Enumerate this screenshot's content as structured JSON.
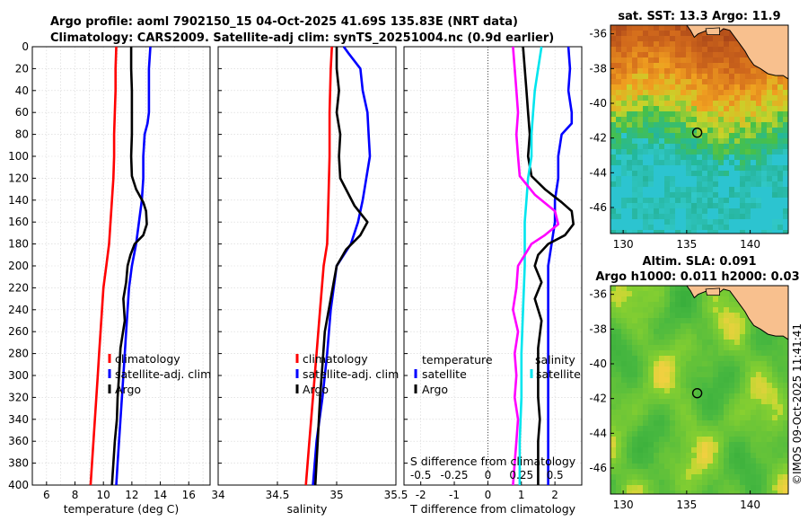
{
  "header": {
    "line1": "Argo profile: aoml 7902150_15 04-Oct-2025 41.69S 135.83E (NRT data)",
    "line2": "Climatology: CARS2009. Satellite-adj clim: synTS_20251004.nc (0.9d earlier)"
  },
  "watermark": "©IMOS 09-Oct-2025 11:41:41",
  "chart_data": [
    {
      "id": "temperature",
      "type": "line",
      "xlabel": "temperature (deg C)",
      "ylabel": "",
      "xlim": [
        5,
        17.5
      ],
      "ylim": [
        400,
        0
      ],
      "xticks": [
        6,
        8,
        10,
        12,
        14,
        16
      ],
      "yticks": [
        0,
        20,
        40,
        60,
        80,
        100,
        120,
        140,
        160,
        180,
        200,
        220,
        240,
        260,
        280,
        300,
        320,
        340,
        360,
        380,
        400
      ],
      "legend": [
        "climatology",
        "satellite-adj. clim",
        "Argo"
      ],
      "series": [
        {
          "name": "climatology",
          "color": "#ff0000",
          "points": [
            [
              10.9,
              0
            ],
            [
              10.85,
              20
            ],
            [
              10.85,
              40
            ],
            [
              10.8,
              60
            ],
            [
              10.75,
              80
            ],
            [
              10.75,
              100
            ],
            [
              10.7,
              120
            ],
            [
              10.6,
              140
            ],
            [
              10.5,
              160
            ],
            [
              10.4,
              180
            ],
            [
              10.2,
              200
            ],
            [
              10.0,
              220
            ],
            [
              9.9,
              240
            ],
            [
              9.8,
              260
            ],
            [
              9.7,
              280
            ],
            [
              9.6,
              300
            ],
            [
              9.5,
              320
            ],
            [
              9.4,
              340
            ],
            [
              9.3,
              360
            ],
            [
              9.2,
              380
            ],
            [
              9.1,
              400
            ]
          ]
        },
        {
          "name": "satellite-adj. clim",
          "color": "#0000ff",
          "points": [
            [
              13.3,
              0
            ],
            [
              13.2,
              20
            ],
            [
              13.2,
              40
            ],
            [
              13.2,
              60
            ],
            [
              13.1,
              70
            ],
            [
              12.9,
              80
            ],
            [
              12.8,
              100
            ],
            [
              12.8,
              120
            ],
            [
              12.7,
              140
            ],
            [
              12.5,
              160
            ],
            [
              12.3,
              180
            ],
            [
              12.0,
              200
            ],
            [
              11.8,
              220
            ],
            [
              11.7,
              240
            ],
            [
              11.6,
              260
            ],
            [
              11.5,
              280
            ],
            [
              11.4,
              300
            ],
            [
              11.3,
              320
            ],
            [
              11.2,
              340
            ],
            [
              11.1,
              360
            ],
            [
              11.0,
              380
            ],
            [
              10.9,
              400
            ]
          ]
        },
        {
          "name": "Argo",
          "color": "#000000",
          "points": [
            [
              11.95,
              0
            ],
            [
              11.95,
              20
            ],
            [
              12.0,
              40
            ],
            [
              12.0,
              60
            ],
            [
              12.0,
              80
            ],
            [
              11.95,
              100
            ],
            [
              12.0,
              118
            ],
            [
              12.3,
              130
            ],
            [
              12.8,
              142
            ],
            [
              13.0,
              150
            ],
            [
              13.05,
              162
            ],
            [
              12.8,
              172
            ],
            [
              12.2,
              180
            ],
            [
              11.9,
              190
            ],
            [
              11.7,
              200
            ],
            [
              11.6,
              215
            ],
            [
              11.4,
              230
            ],
            [
              11.5,
              250
            ],
            [
              11.2,
              275
            ],
            [
              11.1,
              300
            ],
            [
              11.0,
              320
            ],
            [
              10.95,
              340
            ],
            [
              10.8,
              360
            ],
            [
              10.7,
              380
            ],
            [
              10.6,
              400
            ]
          ]
        }
      ]
    },
    {
      "id": "salinity",
      "type": "line",
      "xlabel": "salinity",
      "ylabel": "",
      "xlim": [
        34.0,
        35.5
      ],
      "ylim": [
        400,
        0
      ],
      "xticks": [
        34,
        34.5,
        35,
        35.5
      ],
      "xticklabels": [
        "34",
        "34.5",
        "35",
        "35.5"
      ],
      "legend": [
        "climatology",
        "satellite-adj. clim",
        "Argo"
      ],
      "series": [
        {
          "name": "climatology",
          "color": "#ff0000",
          "points": [
            [
              34.96,
              0
            ],
            [
              34.95,
              20
            ],
            [
              34.94,
              60
            ],
            [
              34.94,
              100
            ],
            [
              34.93,
              140
            ],
            [
              34.92,
              180
            ],
            [
              34.89,
              200
            ],
            [
              34.86,
              240
            ],
            [
              34.83,
              280
            ],
            [
              34.8,
              320
            ],
            [
              34.77,
              360
            ],
            [
              34.74,
              400
            ]
          ]
        },
        {
          "name": "satellite-adj. clim",
          "color": "#0000ff",
          "points": [
            [
              35.06,
              0
            ],
            [
              35.1,
              6
            ],
            [
              35.2,
              20
            ],
            [
              35.22,
              40
            ],
            [
              35.26,
              60
            ],
            [
              35.27,
              80
            ],
            [
              35.28,
              100
            ],
            [
              35.25,
              120
            ],
            [
              35.22,
              140
            ],
            [
              35.18,
              160
            ],
            [
              35.12,
              180
            ],
            [
              35.0,
              200
            ],
            [
              34.95,
              240
            ],
            [
              34.92,
              280
            ],
            [
              34.88,
              320
            ],
            [
              34.83,
              360
            ],
            [
              34.8,
              400
            ]
          ]
        },
        {
          "name": "Argo",
          "color": "#000000",
          "points": [
            [
              35.0,
              0
            ],
            [
              35.0,
              20
            ],
            [
              35.02,
              40
            ],
            [
              35.0,
              60
            ],
            [
              35.03,
              80
            ],
            [
              35.02,
              100
            ],
            [
              35.03,
              120
            ],
            [
              35.15,
              145
            ],
            [
              35.26,
              160
            ],
            [
              35.2,
              172
            ],
            [
              35.08,
              185
            ],
            [
              35.0,
              200
            ],
            [
              34.95,
              230
            ],
            [
              34.9,
              260
            ],
            [
              34.88,
              290
            ],
            [
              34.86,
              320
            ],
            [
              34.84,
              360
            ],
            [
              34.82,
              400
            ]
          ]
        }
      ]
    },
    {
      "id": "difference",
      "type": "line",
      "xlabel": "T difference from climatology",
      "x2label": "S difference from climatology",
      "xlim": [
        -2.5,
        2.8
      ],
      "ylim": [
        400,
        0
      ],
      "xticks": [
        -2,
        -1,
        0,
        1,
        2
      ],
      "xticklabels": [
        "-2",
        "-1",
        "0",
        "1",
        "2"
      ],
      "x2ticklabels": [
        "-0.5",
        "-0.25",
        "0",
        "0.25",
        "0.5"
      ],
      "legend_title_left": "temperature",
      "legend_title_right": "salinity",
      "legend_left": [
        "satellite",
        "Argo"
      ],
      "legend_right": [
        "satellite"
      ],
      "series": [
        {
          "name": "T satellite",
          "color": "#0000ff",
          "points": [
            [
              2.4,
              0
            ],
            [
              2.45,
              20
            ],
            [
              2.4,
              40
            ],
            [
              2.5,
              60
            ],
            [
              2.5,
              70
            ],
            [
              2.2,
              80
            ],
            [
              2.1,
              100
            ],
            [
              2.1,
              120
            ],
            [
              2.0,
              140
            ],
            [
              2.0,
              160
            ],
            [
              1.9,
              180
            ],
            [
              1.8,
              200
            ],
            [
              1.8,
              220
            ],
            [
              1.8,
              240
            ],
            [
              1.8,
              260
            ],
            [
              1.8,
              280
            ],
            [
              1.8,
              300
            ],
            [
              1.8,
              320
            ],
            [
              1.8,
              340
            ],
            [
              1.8,
              360
            ],
            [
              1.8,
              380
            ],
            [
              1.8,
              400
            ]
          ]
        },
        {
          "name": "T Argo",
          "color": "#000000",
          "points": [
            [
              1.05,
              0
            ],
            [
              1.1,
              20
            ],
            [
              1.15,
              40
            ],
            [
              1.2,
              60
            ],
            [
              1.25,
              80
            ],
            [
              1.2,
              100
            ],
            [
              1.3,
              118
            ],
            [
              1.7,
              130
            ],
            [
              2.2,
              142
            ],
            [
              2.5,
              150
            ],
            [
              2.55,
              162
            ],
            [
              2.3,
              172
            ],
            [
              1.8,
              180
            ],
            [
              1.5,
              190
            ],
            [
              1.4,
              200
            ],
            [
              1.6,
              215
            ],
            [
              1.4,
              230
            ],
            [
              1.6,
              250
            ],
            [
              1.5,
              275
            ],
            [
              1.5,
              300
            ],
            [
              1.5,
              320
            ],
            [
              1.55,
              340
            ],
            [
              1.5,
              360
            ],
            [
              1.5,
              380
            ],
            [
              1.5,
              400
            ]
          ]
        },
        {
          "name": "S satellite",
          "color": "#00e5ee",
          "points": [
            [
              1.6,
              0
            ],
            [
              1.5,
              20
            ],
            [
              1.4,
              40
            ],
            [
              1.35,
              60
            ],
            [
              1.3,
              80
            ],
            [
              1.3,
              100
            ],
            [
              1.2,
              120
            ],
            [
              1.15,
              140
            ],
            [
              1.1,
              160
            ],
            [
              1.1,
              180
            ],
            [
              1.1,
              200
            ],
            [
              1.05,
              240
            ],
            [
              1.0,
              280
            ],
            [
              1.0,
              320
            ],
            [
              0.95,
              360
            ],
            [
              0.95,
              400
            ]
          ]
        },
        {
          "name": "S Argo",
          "color": "#ff00ff",
          "points": [
            [
              0.75,
              0
            ],
            [
              0.8,
              20
            ],
            [
              0.85,
              40
            ],
            [
              0.9,
              60
            ],
            [
              0.85,
              80
            ],
            [
              0.9,
              100
            ],
            [
              0.95,
              118
            ],
            [
              1.4,
              135
            ],
            [
              2.0,
              150
            ],
            [
              2.1,
              162
            ],
            [
              1.7,
              172
            ],
            [
              1.3,
              180
            ],
            [
              1.1,
              190
            ],
            [
              0.9,
              200
            ],
            [
              0.85,
              220
            ],
            [
              0.75,
              240
            ],
            [
              0.9,
              260
            ],
            [
              0.8,
              280
            ],
            [
              0.85,
              300
            ],
            [
              0.8,
              320
            ],
            [
              0.9,
              340
            ],
            [
              0.85,
              360
            ],
            [
              0.8,
              380
            ],
            [
              0.75,
              400
            ]
          ]
        }
      ]
    },
    {
      "id": "sst-map",
      "type": "heatmap",
      "title": "sat. SST: 13.3 Argo: 11.9",
      "xlim": [
        129,
        143
      ],
      "ylim": [
        -47.5,
        -35.5
      ],
      "xticks": [
        130,
        135,
        140
      ],
      "yticks": [
        -36,
        -38,
        -40,
        -42,
        -44,
        -46
      ],
      "marker": {
        "lon": 135.83,
        "lat": -41.69
      }
    },
    {
      "id": "sla-map",
      "type": "heatmap",
      "title": "Altim. SLA: 0.091",
      "subtitle": "Argo h1000: 0.011 h2000: 0.03",
      "xlim": [
        129,
        143
      ],
      "ylim": [
        -47.5,
        -35.5
      ],
      "xticks": [
        130,
        135,
        140
      ],
      "yticks": [
        -36,
        -38,
        -40,
        -42,
        -44,
        -46
      ],
      "marker": {
        "lon": 135.83,
        "lat": -41.69
      }
    }
  ]
}
